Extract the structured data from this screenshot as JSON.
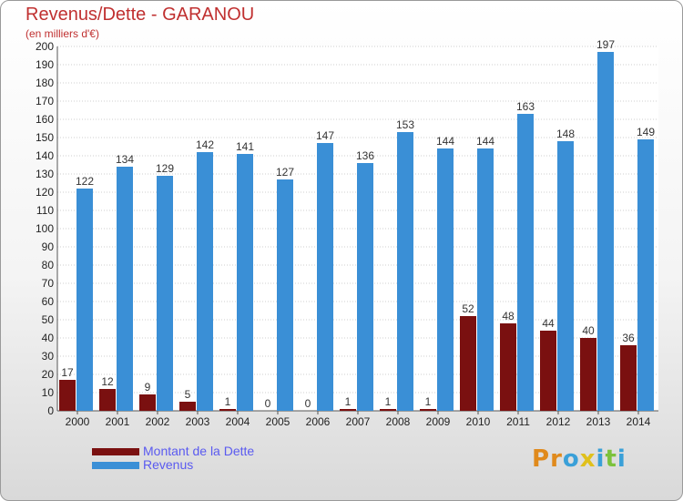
{
  "title": "Revenus/Dette - GARANOU",
  "subtitle": "(en milliers d'€)",
  "colors": {
    "dette": "#7a1010",
    "revenus": "#3a8fd6",
    "title": "#c03030",
    "legend_text": "#5a5af0"
  },
  "legend": {
    "dette_label": "Montant de la Dette",
    "revenus_label": "Revenus"
  },
  "logo": {
    "text": "Proxiti",
    "letters": [
      "P",
      "r",
      "o",
      "x",
      "i",
      "t",
      "i"
    ]
  },
  "chart_data": {
    "type": "bar",
    "title": "Revenus/Dette - GARANOU",
    "subtitle": "(en milliers d'€)",
    "categories": [
      "2000",
      "2001",
      "2002",
      "2003",
      "2004",
      "2005",
      "2006",
      "2007",
      "2008",
      "2009",
      "2010",
      "2011",
      "2012",
      "2013",
      "2014"
    ],
    "series": [
      {
        "name": "Montant de la Dette",
        "color": "#7a1010",
        "values": [
          17,
          12,
          9,
          5,
          1,
          0,
          0,
          1,
          1,
          1,
          52,
          48,
          44,
          40,
          36
        ]
      },
      {
        "name": "Revenus",
        "color": "#3a8fd6",
        "values": [
          122,
          134,
          129,
          142,
          141,
          127,
          147,
          136,
          153,
          144,
          144,
          163,
          148,
          197,
          149
        ]
      }
    ],
    "ylim": [
      0,
      200
    ],
    "yticks": [
      0,
      10,
      20,
      30,
      40,
      50,
      60,
      70,
      80,
      90,
      100,
      110,
      120,
      130,
      140,
      150,
      160,
      170,
      180,
      190,
      200
    ],
    "grid": true,
    "legend_position": "bottom-left"
  }
}
